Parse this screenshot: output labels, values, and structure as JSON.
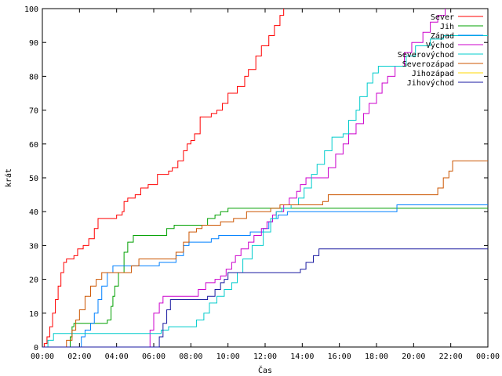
{
  "chart_data": {
    "type": "line",
    "xlabel": "Čas",
    "ylabel": "krát",
    "xlim": [
      0,
      24
    ],
    "ylim": [
      0,
      100
    ],
    "x_ticks": [
      {
        "value": 0,
        "label": "00:00"
      },
      {
        "value": 2,
        "label": "02:00"
      },
      {
        "value": 4,
        "label": "04:00"
      },
      {
        "value": 6,
        "label": "06:00"
      },
      {
        "value": 8,
        "label": "08:00"
      },
      {
        "value": 10,
        "label": "10:00"
      },
      {
        "value": 12,
        "label": "12:00"
      },
      {
        "value": 14,
        "label": "14:00"
      },
      {
        "value": 16,
        "label": "16:00"
      },
      {
        "value": 18,
        "label": "18:00"
      },
      {
        "value": 20,
        "label": "20:00"
      },
      {
        "value": 22,
        "label": "22:00"
      },
      {
        "value": 24,
        "label": "00:00"
      }
    ],
    "y_ticks": [
      0,
      10,
      20,
      30,
      40,
      50,
      60,
      70,
      80,
      90,
      100
    ],
    "grid": false,
    "legend_position": "top-right",
    "series": [
      {
        "name": "Sever",
        "color": "#ff0000",
        "points": [
          [
            0,
            0
          ],
          [
            0.1,
            1
          ],
          [
            0.25,
            3
          ],
          [
            0.4,
            6
          ],
          [
            0.55,
            10
          ],
          [
            0.7,
            14
          ],
          [
            0.85,
            18
          ],
          [
            1.0,
            22
          ],
          [
            1.15,
            25
          ],
          [
            1.3,
            26
          ],
          [
            1.7,
            27
          ],
          [
            1.9,
            29
          ],
          [
            2.2,
            30
          ],
          [
            2.5,
            32
          ],
          [
            2.8,
            35
          ],
          [
            3.0,
            38
          ],
          [
            4.0,
            39
          ],
          [
            4.3,
            40
          ],
          [
            4.4,
            43
          ],
          [
            4.6,
            44
          ],
          [
            5.0,
            45
          ],
          [
            5.3,
            47
          ],
          [
            5.7,
            48
          ],
          [
            6.2,
            51
          ],
          [
            6.8,
            52
          ],
          [
            7.0,
            53
          ],
          [
            7.3,
            55
          ],
          [
            7.6,
            58
          ],
          [
            7.8,
            60
          ],
          [
            8.0,
            61
          ],
          [
            8.2,
            63
          ],
          [
            8.5,
            68
          ],
          [
            9.1,
            69
          ],
          [
            9.4,
            70
          ],
          [
            9.7,
            72
          ],
          [
            10.0,
            75
          ],
          [
            10.5,
            77
          ],
          [
            10.9,
            80
          ],
          [
            11.1,
            82
          ],
          [
            11.5,
            86
          ],
          [
            11.8,
            89
          ],
          [
            12.2,
            92
          ],
          [
            12.5,
            95
          ],
          [
            12.8,
            98
          ],
          [
            13.0,
            100
          ]
        ]
      },
      {
        "name": "Jih",
        "color": "#00a000",
        "points": [
          [
            0,
            0
          ],
          [
            1.4,
            0
          ],
          [
            1.5,
            3
          ],
          [
            1.6,
            6
          ],
          [
            1.7,
            7
          ],
          [
            3.3,
            7
          ],
          [
            3.5,
            8
          ],
          [
            3.7,
            12
          ],
          [
            3.8,
            15
          ],
          [
            3.9,
            18
          ],
          [
            4.1,
            22
          ],
          [
            4.4,
            28
          ],
          [
            4.6,
            31
          ],
          [
            4.9,
            33
          ],
          [
            6.4,
            33
          ],
          [
            6.7,
            35
          ],
          [
            7.1,
            36
          ],
          [
            8.7,
            36
          ],
          [
            8.9,
            38
          ],
          [
            9.3,
            39
          ],
          [
            9.6,
            40
          ],
          [
            10.0,
            41
          ],
          [
            24,
            41
          ]
        ]
      },
      {
        "name": "Západ",
        "color": "#0080ff",
        "points": [
          [
            0,
            0
          ],
          [
            2.0,
            0
          ],
          [
            2.1,
            3
          ],
          [
            2.3,
            5
          ],
          [
            2.6,
            7
          ],
          [
            2.8,
            10
          ],
          [
            3.0,
            14
          ],
          [
            3.2,
            18
          ],
          [
            3.5,
            22
          ],
          [
            3.8,
            24
          ],
          [
            6.0,
            24
          ],
          [
            6.3,
            25
          ],
          [
            7.2,
            27
          ],
          [
            7.6,
            30
          ],
          [
            7.9,
            31
          ],
          [
            9.1,
            32
          ],
          [
            9.5,
            33
          ],
          [
            11.2,
            34
          ],
          [
            11.9,
            35
          ],
          [
            12.2,
            37
          ],
          [
            12.4,
            38
          ],
          [
            12.7,
            39
          ],
          [
            13.2,
            40
          ],
          [
            19.0,
            40
          ],
          [
            19.1,
            42
          ],
          [
            24,
            42
          ]
        ]
      },
      {
        "name": "Východ",
        "color": "#cc00cc",
        "points": [
          [
            0,
            0
          ],
          [
            5.6,
            0
          ],
          [
            5.8,
            5
          ],
          [
            6.0,
            10
          ],
          [
            6.3,
            13
          ],
          [
            6.5,
            15
          ],
          [
            8.2,
            15
          ],
          [
            8.4,
            17
          ],
          [
            8.8,
            19
          ],
          [
            9.3,
            20
          ],
          [
            9.6,
            21
          ],
          [
            9.9,
            23
          ],
          [
            10.2,
            25
          ],
          [
            10.4,
            27
          ],
          [
            10.7,
            29
          ],
          [
            11.1,
            31
          ],
          [
            11.4,
            33
          ],
          [
            11.8,
            35
          ],
          [
            12.1,
            37
          ],
          [
            12.4,
            39
          ],
          [
            12.6,
            40
          ],
          [
            13.0,
            42
          ],
          [
            13.3,
            44
          ],
          [
            13.7,
            46
          ],
          [
            13.9,
            48
          ],
          [
            14.2,
            50
          ],
          [
            15.2,
            50
          ],
          [
            15.4,
            53
          ],
          [
            15.8,
            57
          ],
          [
            16.2,
            60
          ],
          [
            16.5,
            63
          ],
          [
            16.9,
            66
          ],
          [
            17.3,
            69
          ],
          [
            17.6,
            72
          ],
          [
            18.0,
            75
          ],
          [
            18.3,
            78
          ],
          [
            18.6,
            80
          ],
          [
            19.0,
            83
          ],
          [
            19.5,
            87
          ],
          [
            19.9,
            90
          ],
          [
            20.5,
            93
          ],
          [
            20.9,
            96
          ],
          [
            21.3,
            98
          ],
          [
            21.7,
            100
          ]
        ]
      },
      {
        "name": "Severovýchod",
        "color": "#00cccc",
        "points": [
          [
            0,
            0
          ],
          [
            0.3,
            2
          ],
          [
            0.6,
            4
          ],
          [
            5.9,
            4
          ],
          [
            6.4,
            5
          ],
          [
            6.8,
            6
          ],
          [
            7.9,
            6
          ],
          [
            8.3,
            8
          ],
          [
            8.7,
            10
          ],
          [
            9.0,
            13
          ],
          [
            9.4,
            15
          ],
          [
            9.8,
            17
          ],
          [
            10.2,
            19
          ],
          [
            10.5,
            22
          ],
          [
            10.8,
            26
          ],
          [
            11.3,
            30
          ],
          [
            11.9,
            34
          ],
          [
            12.3,
            38
          ],
          [
            12.6,
            40
          ],
          [
            12.9,
            41
          ],
          [
            13.4,
            42
          ],
          [
            13.8,
            44
          ],
          [
            14.1,
            47
          ],
          [
            14.5,
            51
          ],
          [
            14.8,
            54
          ],
          [
            15.2,
            58
          ],
          [
            15.6,
            62
          ],
          [
            16.2,
            63
          ],
          [
            16.5,
            67
          ],
          [
            16.9,
            70
          ],
          [
            17.1,
            74
          ],
          [
            17.5,
            78
          ],
          [
            17.8,
            81
          ],
          [
            18.1,
            83
          ],
          [
            19.0,
            83
          ],
          [
            19.6,
            86
          ],
          [
            20.1,
            89
          ],
          [
            20.9,
            91
          ],
          [
            21.6,
            92
          ],
          [
            24,
            92
          ]
        ]
      },
      {
        "name": "Severozápad",
        "color": "#cc5500",
        "points": [
          [
            0,
            0
          ],
          [
            1.1,
            0
          ],
          [
            1.3,
            2
          ],
          [
            1.6,
            5
          ],
          [
            1.8,
            8
          ],
          [
            2.0,
            11
          ],
          [
            2.3,
            15
          ],
          [
            2.6,
            18
          ],
          [
            2.9,
            20
          ],
          [
            3.2,
            22
          ],
          [
            4.5,
            22
          ],
          [
            4.8,
            24
          ],
          [
            5.2,
            26
          ],
          [
            7.0,
            26
          ],
          [
            7.2,
            28
          ],
          [
            7.6,
            31
          ],
          [
            7.9,
            34
          ],
          [
            8.3,
            35
          ],
          [
            8.6,
            36
          ],
          [
            9.6,
            37
          ],
          [
            10.3,
            38
          ],
          [
            11.0,
            40
          ],
          [
            12.3,
            41
          ],
          [
            12.8,
            42
          ],
          [
            15.1,
            43
          ],
          [
            15.4,
            45
          ],
          [
            21.0,
            45
          ],
          [
            21.3,
            47
          ],
          [
            21.6,
            50
          ],
          [
            21.9,
            52
          ],
          [
            22.1,
            55
          ],
          [
            24,
            55
          ]
        ]
      },
      {
        "name": "Jihozápad",
        "color": "#ffd700",
        "points": []
      },
      {
        "name": "Jihovýchod",
        "color": "#1a1aa0",
        "points": [
          [
            0,
            0
          ],
          [
            6.1,
            0
          ],
          [
            6.3,
            3
          ],
          [
            6.5,
            7
          ],
          [
            6.7,
            11
          ],
          [
            6.9,
            14
          ],
          [
            8.7,
            14
          ],
          [
            8.9,
            15
          ],
          [
            9.3,
            17
          ],
          [
            9.6,
            19
          ],
          [
            9.8,
            20
          ],
          [
            10.0,
            22
          ],
          [
            13.7,
            22
          ],
          [
            13.9,
            23
          ],
          [
            14.2,
            25
          ],
          [
            14.6,
            27
          ],
          [
            14.9,
            29
          ],
          [
            24,
            29
          ]
        ]
      }
    ]
  }
}
